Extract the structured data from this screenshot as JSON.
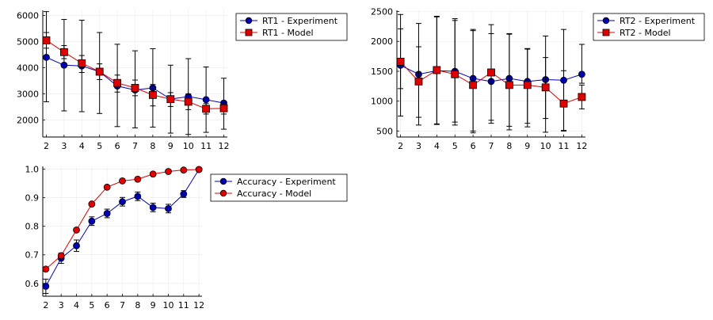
{
  "chart_data": [
    {
      "id": "rt1",
      "type": "line",
      "title": "",
      "xlabel": "",
      "ylabel": "",
      "x": [
        2,
        3,
        4,
        5,
        6,
        7,
        8,
        9,
        10,
        11,
        12
      ],
      "xlim": [
        1.8,
        12.2
      ],
      "ylim": [
        1350,
        6200
      ],
      "yticks": [
        2000,
        3000,
        4000,
        5000,
        6000
      ],
      "grid": true,
      "legend_position": "outer-top-right",
      "series": [
        {
          "name": "RT1 - Experiment",
          "color": "#0000b3",
          "marker": "circle",
          "values": [
            4400,
            4100,
            4070,
            3850,
            3300,
            3150,
            3230,
            2800,
            2900,
            2780,
            2650
          ],
          "err_low": [
            1700,
            1750,
            1750,
            1600,
            1550,
            1450,
            1500,
            1300,
            1450,
            1250,
            1000
          ],
          "err_high": [
            1750,
            1750,
            1750,
            1500,
            1600,
            1500,
            1500,
            1300,
            1450,
            1250,
            950
          ]
        },
        {
          "name": "RT1 - Model",
          "color": "#e00000",
          "marker": "square",
          "values": [
            5050,
            4600,
            4170,
            3850,
            3420,
            3230,
            2960,
            2800,
            2700,
            2430,
            2450
          ],
          "err_low": [
            300,
            250,
            350,
            300,
            350,
            300,
            420,
            280,
            300,
            200,
            220
          ],
          "err_high": [
            300,
            250,
            300,
            300,
            300,
            300,
            400,
            250,
            300,
            200,
            220
          ]
        }
      ]
    },
    {
      "id": "rt2",
      "type": "line",
      "title": "",
      "xlabel": "",
      "ylabel": "",
      "x": [
        2,
        3,
        4,
        5,
        6,
        7,
        8,
        9,
        10,
        11,
        12
      ],
      "xlim": [
        1.8,
        12.2
      ],
      "ylim": [
        400,
        2520
      ],
      "yticks": [
        500,
        1000,
        1500,
        2000,
        2500
      ],
      "grid": true,
      "legend_position": "outer-top-right",
      "series": [
        {
          "name": "RT2 - Experiment",
          "color": "#0000b3",
          "marker": "circle",
          "values": [
            1600,
            1450,
            1510,
            1500,
            1380,
            1330,
            1380,
            1330,
            1360,
            1350,
            1450
          ],
          "err_low": [
            850,
            850,
            900,
            900,
            880,
            700,
            800,
            700,
            650,
            850,
            150
          ],
          "err_high": [
            850,
            850,
            900,
            850,
            800,
            800,
            750,
            550,
            730,
            850,
            500
          ]
        },
        {
          "name": "RT2 - Model",
          "color": "#e00000",
          "marker": "square",
          "values": [
            1660,
            1330,
            1520,
            1450,
            1270,
            1480,
            1270,
            1270,
            1230,
            960,
            1070
          ],
          "err_low": [
            450,
            600,
            900,
            800,
            800,
            800,
            750,
            700,
            750,
            450,
            200
          ],
          "err_high": [
            550,
            580,
            900,
            930,
            930,
            800,
            850,
            600,
            500,
            550,
            200
          ]
        }
      ]
    },
    {
      "id": "acc",
      "type": "line",
      "title": "",
      "xlabel": "",
      "ylabel": "",
      "x": [
        2,
        3,
        4,
        5,
        6,
        7,
        8,
        9,
        10,
        11,
        12
      ],
      "xlim": [
        1.8,
        12.2
      ],
      "ylim": [
        0.555,
        1.01
      ],
      "yticks": [
        0.6,
        0.7,
        0.8,
        0.9,
        1.0
      ],
      "ytick_labels": [
        "0.6",
        "0.7",
        "0.8",
        "0.9",
        "1.0"
      ],
      "grid": true,
      "legend_position": "outer-top-right",
      "series": [
        {
          "name": "Accuracy - Experiment",
          "color": "#0000b3",
          "marker": "circle",
          "values": [
            0.59,
            0.688,
            0.732,
            0.818,
            0.845,
            0.886,
            0.905,
            0.866,
            0.862,
            0.913,
            0.999
          ],
          "err_low": [
            0.025,
            0.018,
            0.02,
            0.015,
            0.015,
            0.015,
            0.015,
            0.015,
            0.015,
            0.012,
            0.002
          ],
          "err_high": [
            0.025,
            0.018,
            0.02,
            0.015,
            0.015,
            0.015,
            0.015,
            0.015,
            0.015,
            0.012,
            0.002
          ]
        },
        {
          "name": "Accuracy - Model",
          "color": "#e00000",
          "marker": "circle",
          "values": [
            0.65,
            0.697,
            0.787,
            0.878,
            0.937,
            0.959,
            0.965,
            0.983,
            0.992,
            0.997,
            0.999
          ],
          "err_low": [
            0,
            0,
            0,
            0,
            0,
            0,
            0,
            0,
            0,
            0,
            0
          ],
          "err_high": [
            0,
            0,
            0,
            0,
            0,
            0,
            0,
            0,
            0,
            0,
            0
          ]
        }
      ]
    }
  ]
}
